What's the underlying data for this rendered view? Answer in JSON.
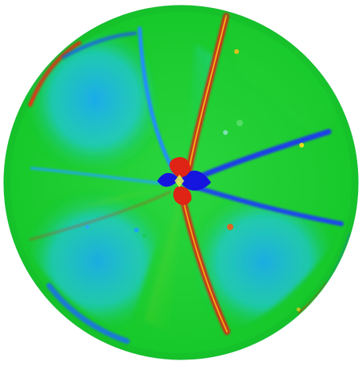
{
  "image": {
    "subject": "",
    "colormap": [
      "#1b1fd6",
      "#20b7ff",
      "#18cf2b",
      "#f0e51b",
      "#e33a17"
    ]
  }
}
